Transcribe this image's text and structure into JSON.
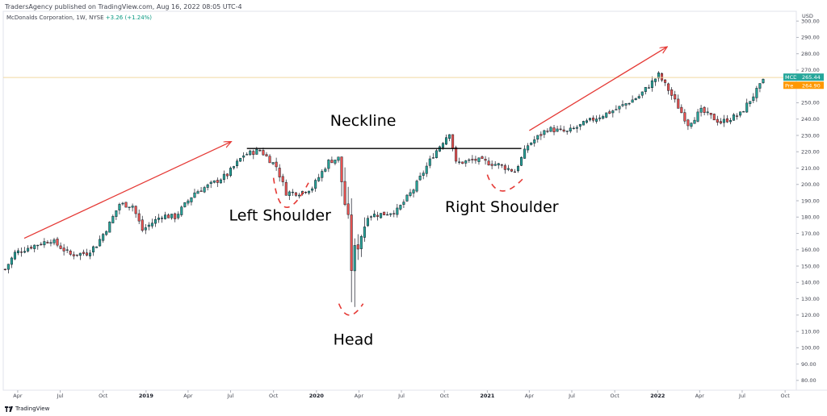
{
  "header": {
    "publisher_line": "TradersAgency published on TradingView.com, Aug 16, 2022 08:05 UTC-4",
    "symbol_line": "McDonalds Corporation, 1W, NYSE",
    "change_text": "+3.26 (+1.24%)"
  },
  "footer": {
    "brand": "TradingView",
    "logo_icon": "tradingview-logo-icon"
  },
  "colors": {
    "up": "#26a69a",
    "down": "#ef5350",
    "wick": "#131722",
    "neckline": "#000000",
    "arrow": "#e53935",
    "dash": "#e53935",
    "last_line": "#f0d9a0",
    "mcd_badge": "#26a69a",
    "pre_badge": "#ff9800"
  },
  "chart_data": {
    "type": "candlestick",
    "title": "McDonalds Corporation, 1W, NYSE",
    "currency": "USD",
    "y_axis_label": "USD",
    "ylim": [
      74,
      306
    ],
    "y_ticks": [
      80,
      90,
      100,
      110,
      120,
      130,
      140,
      150,
      160,
      170,
      180,
      190,
      200,
      210,
      220,
      230,
      240,
      250,
      260,
      270,
      280,
      290,
      300
    ],
    "x_range": [
      "2018-03-01",
      "2022-10-25"
    ],
    "x_ticks": [
      {
        "label": "Apr",
        "date": "2018-04-01"
      },
      {
        "label": "Jul",
        "date": "2018-07-01"
      },
      {
        "label": "Oct",
        "date": "2018-10-01"
      },
      {
        "label": "2019",
        "date": "2019-01-01",
        "year": true
      },
      {
        "label": "Apr",
        "date": "2019-04-01"
      },
      {
        "label": "Jul",
        "date": "2019-07-01"
      },
      {
        "label": "Oct",
        "date": "2019-10-01"
      },
      {
        "label": "2020",
        "date": "2020-01-01",
        "year": true
      },
      {
        "label": "Apr",
        "date": "2020-04-01"
      },
      {
        "label": "Jul",
        "date": "2020-07-01"
      },
      {
        "label": "Oct",
        "date": "2020-10-01"
      },
      {
        "label": "2021",
        "date": "2021-01-01",
        "year": true
      },
      {
        "label": "Apr",
        "date": "2021-04-01"
      },
      {
        "label": "Jul",
        "date": "2021-07-01"
      },
      {
        "label": "Oct",
        "date": "2021-10-01"
      },
      {
        "label": "2022",
        "date": "2022-01-01",
        "year": true
      },
      {
        "label": "Apr",
        "date": "2022-04-01"
      },
      {
        "label": "Jul",
        "date": "2022-07-01"
      },
      {
        "label": "Oct",
        "date": "2022-10-01"
      }
    ],
    "price_path": [
      [
        "2018-03-05",
        148
      ],
      [
        "2018-03-26",
        158
      ],
      [
        "2018-04-30",
        162
      ],
      [
        "2018-06-11",
        166
      ],
      [
        "2018-07-23",
        157
      ],
      [
        "2018-08-27",
        158
      ],
      [
        "2018-09-17",
        163
      ],
      [
        "2018-10-15",
        176
      ],
      [
        "2018-11-05",
        188
      ],
      [
        "2018-12-03",
        187
      ],
      [
        "2018-12-24",
        172
      ],
      [
        "2019-02-04",
        181
      ],
      [
        "2019-03-04",
        180
      ],
      [
        "2019-04-15",
        195
      ],
      [
        "2019-05-20",
        200
      ],
      [
        "2019-06-24",
        206
      ],
      [
        "2019-07-29",
        218
      ],
      [
        "2019-09-02",
        221
      ],
      [
        "2019-10-07",
        211
      ],
      [
        "2019-10-28",
        195
      ],
      [
        "2019-11-25",
        195
      ],
      [
        "2019-12-23",
        198
      ],
      [
        "2020-01-27",
        214
      ],
      [
        "2020-02-17",
        216
      ],
      [
        "2020-03-09",
        175
      ],
      [
        "2020-03-16",
        150
      ],
      [
        "2020-03-30",
        165
      ],
      [
        "2020-04-20",
        181
      ],
      [
        "2020-05-25",
        182
      ],
      [
        "2020-06-22",
        184
      ],
      [
        "2020-07-27",
        197
      ],
      [
        "2020-09-07",
        218
      ],
      [
        "2020-10-12",
        232
      ],
      [
        "2020-10-26",
        213
      ],
      [
        "2020-12-07",
        215
      ],
      [
        "2021-01-25",
        212
      ],
      [
        "2021-03-01",
        208
      ],
      [
        "2021-03-29",
        224
      ],
      [
        "2021-05-10",
        234
      ],
      [
        "2021-06-21",
        232
      ],
      [
        "2021-08-16",
        240
      ],
      [
        "2021-10-04",
        246
      ],
      [
        "2021-11-22",
        254
      ],
      [
        "2022-01-03",
        267
      ],
      [
        "2022-01-24",
        258
      ],
      [
        "2022-03-07",
        237
      ],
      [
        "2022-04-04",
        245
      ],
      [
        "2022-05-16",
        238
      ],
      [
        "2022-06-27",
        243
      ],
      [
        "2022-08-15",
        263
      ]
    ],
    "neckline": {
      "label": "Neckline",
      "from": "2019-08-05",
      "to": "2021-03-15",
      "value": 222
    },
    "last_price": {
      "symbol": "MCD",
      "value": 265.44,
      "label": "265.44"
    },
    "pre_market": {
      "symbol": "Pre",
      "value": 264.9,
      "label": "264.90"
    },
    "annotations": [
      {
        "label": "Left Shoulder",
        "date": "2019-10-15",
        "y": 178,
        "anchor": "middle"
      },
      {
        "label": "Head",
        "date": "2020-03-20",
        "y": 102,
        "anchor": "middle"
      },
      {
        "label": "Right Shoulder",
        "date": "2021-02-01",
        "y": 183,
        "anchor": "middle"
      },
      {
        "label": "Neckline",
        "date": "2020-04-10",
        "y": 236,
        "anchor": "middle"
      }
    ],
    "arrows": [
      {
        "from": [
          "2018-04-15",
          167
        ],
        "to": [
          "2019-07-01",
          226
        ]
      },
      {
        "from": [
          "2021-04-01",
          233
        ],
        "to": [
          "2022-01-20",
          284
        ]
      }
    ],
    "shoulder_curves": [
      {
        "from": [
          "2019-10-01",
          204
        ],
        "mid": [
          "2019-10-28",
          186
        ],
        "to": [
          "2019-12-15",
          201
        ]
      },
      {
        "from": [
          "2020-02-18",
          127
        ],
        "mid": [
          "2020-03-12",
          120
        ],
        "to": [
          "2020-04-10",
          127
        ]
      },
      {
        "from": [
          "2021-01-01",
          206
        ],
        "mid": [
          "2021-02-01",
          196
        ],
        "to": [
          "2021-03-20",
          204
        ]
      }
    ]
  }
}
